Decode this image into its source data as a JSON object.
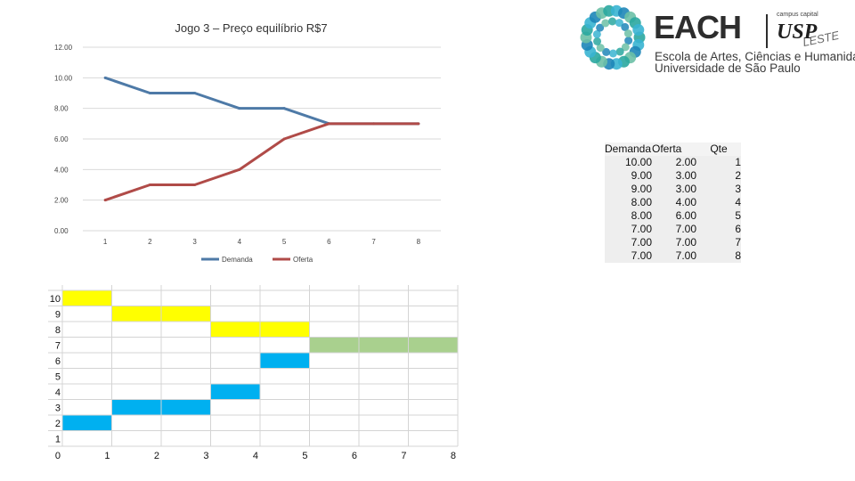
{
  "chart_data": [
    {
      "type": "line",
      "title": "Jogo 3 – Preço equilíbrio R$7",
      "categories": [
        "1",
        "2",
        "3",
        "4",
        "5",
        "6",
        "7",
        "8"
      ],
      "y_tick_labels": [
        "0.00",
        "2.00",
        "4.00",
        "6.00",
        "8.00",
        "10.00",
        "12.00"
      ],
      "ylim": [
        0,
        12
      ],
      "legend_position": "bottom",
      "series": [
        {
          "name": "Demanda",
          "color": "#4e7aa7",
          "values": [
            10,
            9,
            9,
            8,
            8,
            7,
            7,
            7
          ]
        },
        {
          "name": "Oferta",
          "color": "#b04b48",
          "values": [
            2,
            3,
            3,
            4,
            6,
            7,
            7,
            7
          ]
        }
      ]
    },
    {
      "type": "heatmap",
      "x_labels": [
        "0",
        "1",
        "2",
        "3",
        "4",
        "5",
        "6",
        "7",
        "8"
      ],
      "y_labels": [
        "10",
        "9",
        "8",
        "7",
        "6",
        "5",
        "4",
        "3",
        "2",
        "1"
      ],
      "colors": {
        "demanda": "#ffff00",
        "oferta": "#00b0f0",
        "equilibrio": "#a9d08e"
      },
      "cells": [
        {
          "x": 1,
          "y": 10,
          "kind": "demanda"
        },
        {
          "x": 2,
          "y": 9,
          "kind": "demanda"
        },
        {
          "x": 3,
          "y": 9,
          "kind": "demanda"
        },
        {
          "x": 4,
          "y": 8,
          "kind": "demanda"
        },
        {
          "x": 5,
          "y": 8,
          "kind": "demanda"
        },
        {
          "x": 6,
          "y": 7,
          "kind": "equilibrio"
        },
        {
          "x": 7,
          "y": 7,
          "kind": "equilibrio"
        },
        {
          "x": 8,
          "y": 7,
          "kind": "equilibrio"
        },
        {
          "x": 5,
          "y": 6,
          "kind": "oferta"
        },
        {
          "x": 4,
          "y": 4,
          "kind": "oferta"
        },
        {
          "x": 2,
          "y": 3,
          "kind": "oferta"
        },
        {
          "x": 3,
          "y": 3,
          "kind": "oferta"
        },
        {
          "x": 1,
          "y": 2,
          "kind": "oferta"
        }
      ]
    }
  ],
  "logo": {
    "name": "EACH",
    "campus_label": "campus capital",
    "usp": "USP",
    "leste": "LESTE",
    "line1": "Escola de Artes, Ciências e Humanidades",
    "line2": "Universidade de São Paulo",
    "colors": [
      "#2aa7a0",
      "#39b4d1",
      "#1e86b8",
      "#6cc0a6"
    ]
  },
  "table": {
    "headers": [
      "Demanda",
      "Oferta",
      "Qte"
    ],
    "rows": [
      [
        "10.00",
        "2.00",
        "1"
      ],
      [
        "9.00",
        "3.00",
        "2"
      ],
      [
        "9.00",
        "3.00",
        "3"
      ],
      [
        "8.00",
        "4.00",
        "4"
      ],
      [
        "8.00",
        "6.00",
        "5"
      ],
      [
        "7.00",
        "7.00",
        "6"
      ],
      [
        "7.00",
        "7.00",
        "7"
      ],
      [
        "7.00",
        "7.00",
        "8"
      ]
    ]
  }
}
